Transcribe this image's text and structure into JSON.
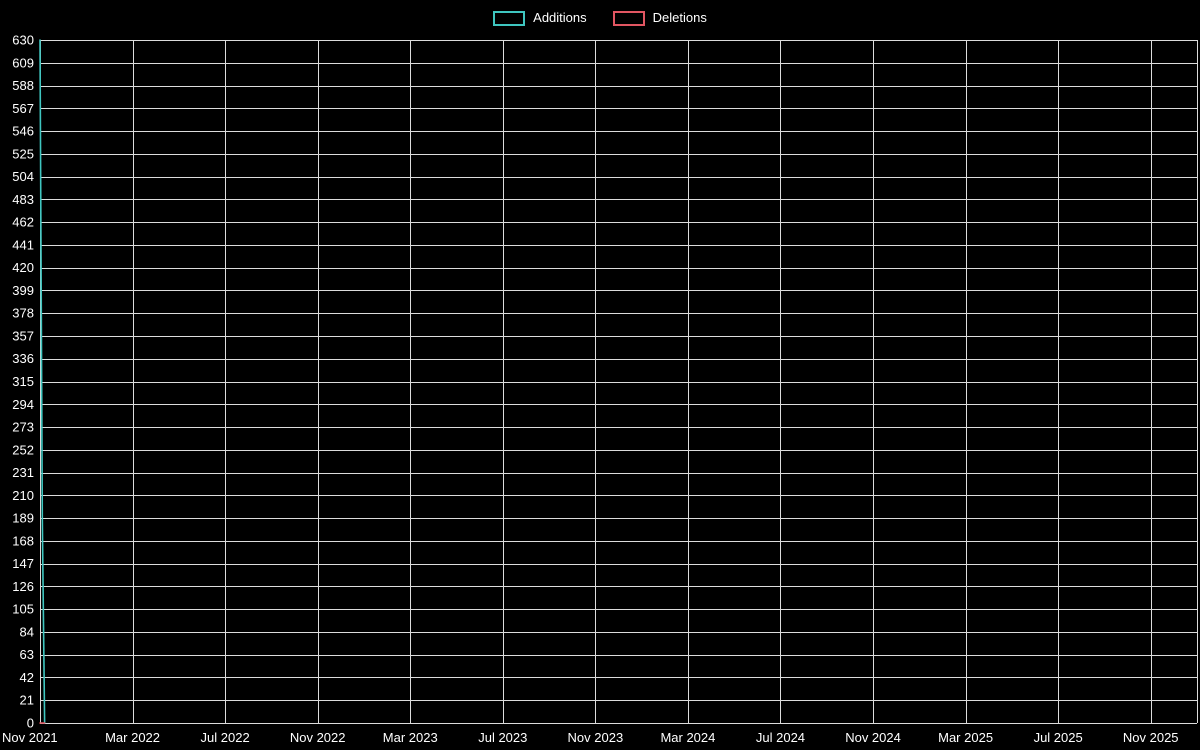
{
  "chart_data": {
    "type": "line",
    "title": "",
    "legend": [
      {
        "label": "Additions",
        "color": "#3fc6c0"
      },
      {
        "label": "Deletions",
        "color": "#e25662"
      }
    ],
    "legend_position": "top-center",
    "grid": true,
    "background_color": "#000000",
    "grid_color": "#dcdcdc",
    "text_color": "#ffffff",
    "x_axis": {
      "tick_labels": [
        "Nov 2021",
        "Mar 2022",
        "Jul 2022",
        "Nov 2022",
        "Mar 2023",
        "Jul 2023",
        "Nov 2023",
        "Mar 2024",
        "Jul 2024",
        "Nov 2024",
        "Mar 2025",
        "Jul 2025",
        "Nov 2025"
      ],
      "months_per_tick": 4,
      "total_months": 50
    },
    "y_axis": {
      "min": 0,
      "max": 630,
      "step": 21,
      "tick_labels": [
        0,
        21,
        42,
        63,
        84,
        105,
        126,
        147,
        168,
        189,
        210,
        231,
        252,
        273,
        294,
        315,
        336,
        357,
        378,
        399,
        420,
        441,
        462,
        483,
        504,
        525,
        546,
        567,
        588,
        609,
        630
      ]
    },
    "series": [
      {
        "name": "Additions",
        "color": "#3fc6c0",
        "points": [
          [
            0,
            630
          ],
          [
            0.1,
            189
          ],
          [
            0.2,
            0
          ]
        ]
      },
      {
        "name": "Deletions",
        "color": "#e25662",
        "points": [
          [
            0,
            0
          ],
          [
            0.2,
            0
          ]
        ]
      }
    ]
  }
}
